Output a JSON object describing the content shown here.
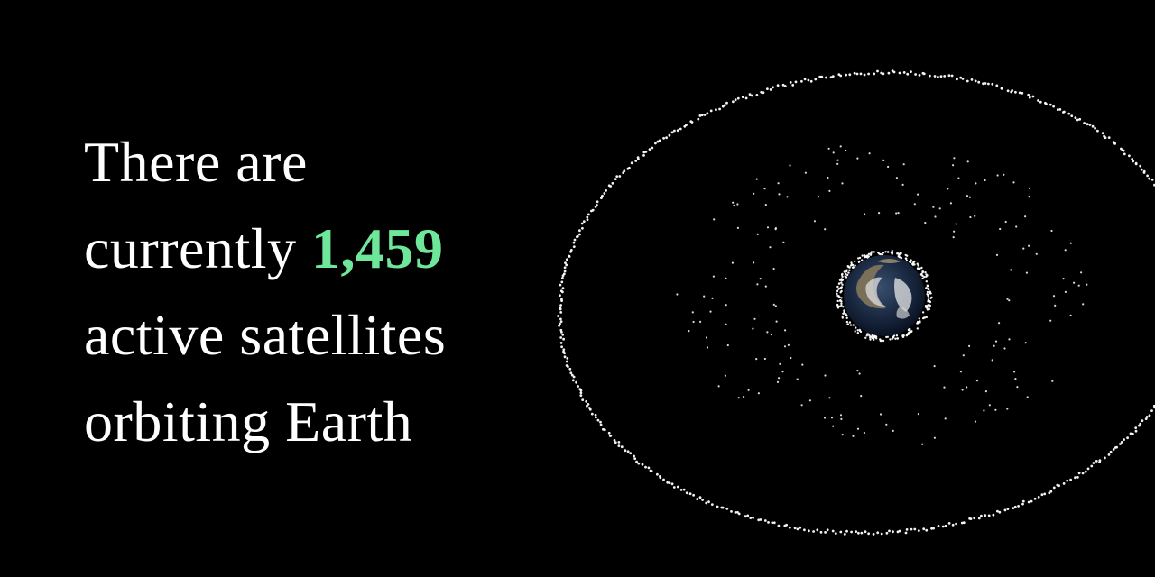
{
  "headline": {
    "line1": "There are",
    "line2_prefix": "currently ",
    "count": "1,459",
    "line3": "active satellites",
    "line4": "orbiting Earth"
  },
  "colors": {
    "background": "#000000",
    "text": "#ffffff",
    "accent": "#6ee79a",
    "satellite": "#ffffff"
  },
  "icons": {
    "earth": "earth-globe-icon",
    "satellite": "satellite-dot-icon"
  }
}
